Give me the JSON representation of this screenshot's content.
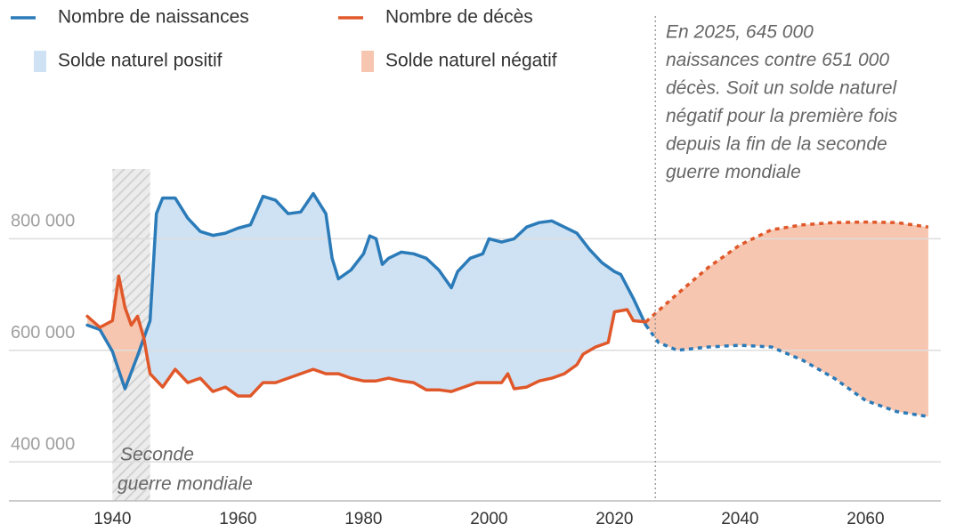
{
  "chart_data": {
    "type": "line",
    "xlim": [
      1923.5,
      2072
    ],
    "ylim": [
      330000,
      925000
    ],
    "xticks": [
      1940,
      1960,
      1980,
      2000,
      2020,
      2040,
      2060
    ],
    "yticks": [
      {
        "value": 400000,
        "label": "400 000"
      },
      {
        "value": 600000,
        "label": "600 000"
      },
      {
        "value": 800000,
        "label": "800 000"
      }
    ],
    "grid": true,
    "projection_start": 2025,
    "series": [
      {
        "name": "Nombre de naissances",
        "color": "#2b7bb9",
        "x": [
          1936,
          1938,
          1940,
          1942,
          1944,
          1946,
          1947,
          1948,
          1950,
          1952,
          1954,
          1956,
          1958,
          1960,
          1962,
          1964,
          1966,
          1968,
          1970,
          1972,
          1974,
          1975,
          1976,
          1978,
          1980,
          1981,
          1982,
          1983,
          1984,
          1986,
          1988,
          1990,
          1992,
          1994,
          1995,
          1997,
          1999,
          2000,
          2002,
          2004,
          2006,
          2008,
          2010,
          2012,
          2014,
          2016,
          2018,
          2020,
          2021,
          2023,
          2025,
          2027,
          2030,
          2035,
          2040,
          2045,
          2050,
          2055,
          2060,
          2065,
          2070
        ],
        "values": [
          645000,
          637000,
          598000,
          531000,
          590000,
          653000,
          845000,
          873000,
          873000,
          837000,
          813000,
          806000,
          810000,
          819000,
          825000,
          876000,
          869000,
          845000,
          848000,
          881000,
          845000,
          765000,
          728000,
          744000,
          773000,
          805000,
          800000,
          754000,
          765000,
          776000,
          773000,
          765000,
          744000,
          712000,
          741000,
          765000,
          773000,
          800000,
          794000,
          800000,
          821000,
          829000,
          832000,
          821000,
          810000,
          781000,
          757000,
          741000,
          736000,
          693000,
          645000,
          614000,
          600000,
          606000,
          609000,
          606000,
          582000,
          550000,
          510000,
          490000,
          481000
        ]
      },
      {
        "name": "Nombre de décès",
        "color": "#e0582a",
        "x": [
          1936,
          1938,
          1940,
          1941,
          1942,
          1943,
          1944,
          1945,
          1946,
          1948,
          1950,
          1952,
          1954,
          1956,
          1958,
          1960,
          1962,
          1964,
          1966,
          1968,
          1970,
          1972,
          1974,
          1976,
          1978,
          1980,
          1982,
          1984,
          1986,
          1988,
          1990,
          1992,
          1994,
          1996,
          1998,
          2000,
          2002,
          2003,
          2004,
          2006,
          2008,
          2010,
          2012,
          2014,
          2015,
          2017,
          2019,
          2020,
          2022,
          2023,
          2025,
          2030,
          2035,
          2040,
          2045,
          2050,
          2055,
          2060,
          2065,
          2070
        ],
        "values": [
          661000,
          641000,
          653000,
          733000,
          677000,
          645000,
          661000,
          622000,
          558000,
          534000,
          566000,
          542000,
          550000,
          526000,
          534000,
          518000,
          518000,
          542000,
          542000,
          550000,
          558000,
          566000,
          558000,
          558000,
          550000,
          545000,
          545000,
          550000,
          545000,
          542000,
          529000,
          529000,
          526000,
          534000,
          542000,
          542000,
          542000,
          558000,
          531000,
          534000,
          545000,
          550000,
          558000,
          574000,
          593000,
          606000,
          614000,
          669000,
          673000,
          653000,
          651000,
          701000,
          749000,
          789000,
          816000,
          825000,
          829000,
          830000,
          829000,
          821000
        ]
      }
    ],
    "fills": [
      {
        "name": "Solde naturel positif",
        "color": "#cfe2f3"
      },
      {
        "name": "Solde naturel négatif",
        "color": "#f7c6b0"
      }
    ],
    "shaded_period": {
      "x": [
        1940,
        1946
      ],
      "label": [
        "Seconde",
        "guerre mondiale"
      ]
    },
    "annotation": {
      "x": 2026.5,
      "lines": [
        "En 2025, 645 000",
        "naissances contre 651 000",
        "décès. Soit un solde naturel",
        "négatif pour la première fois",
        "depuis la fin de la seconde",
        "guerre mondiale"
      ]
    }
  }
}
